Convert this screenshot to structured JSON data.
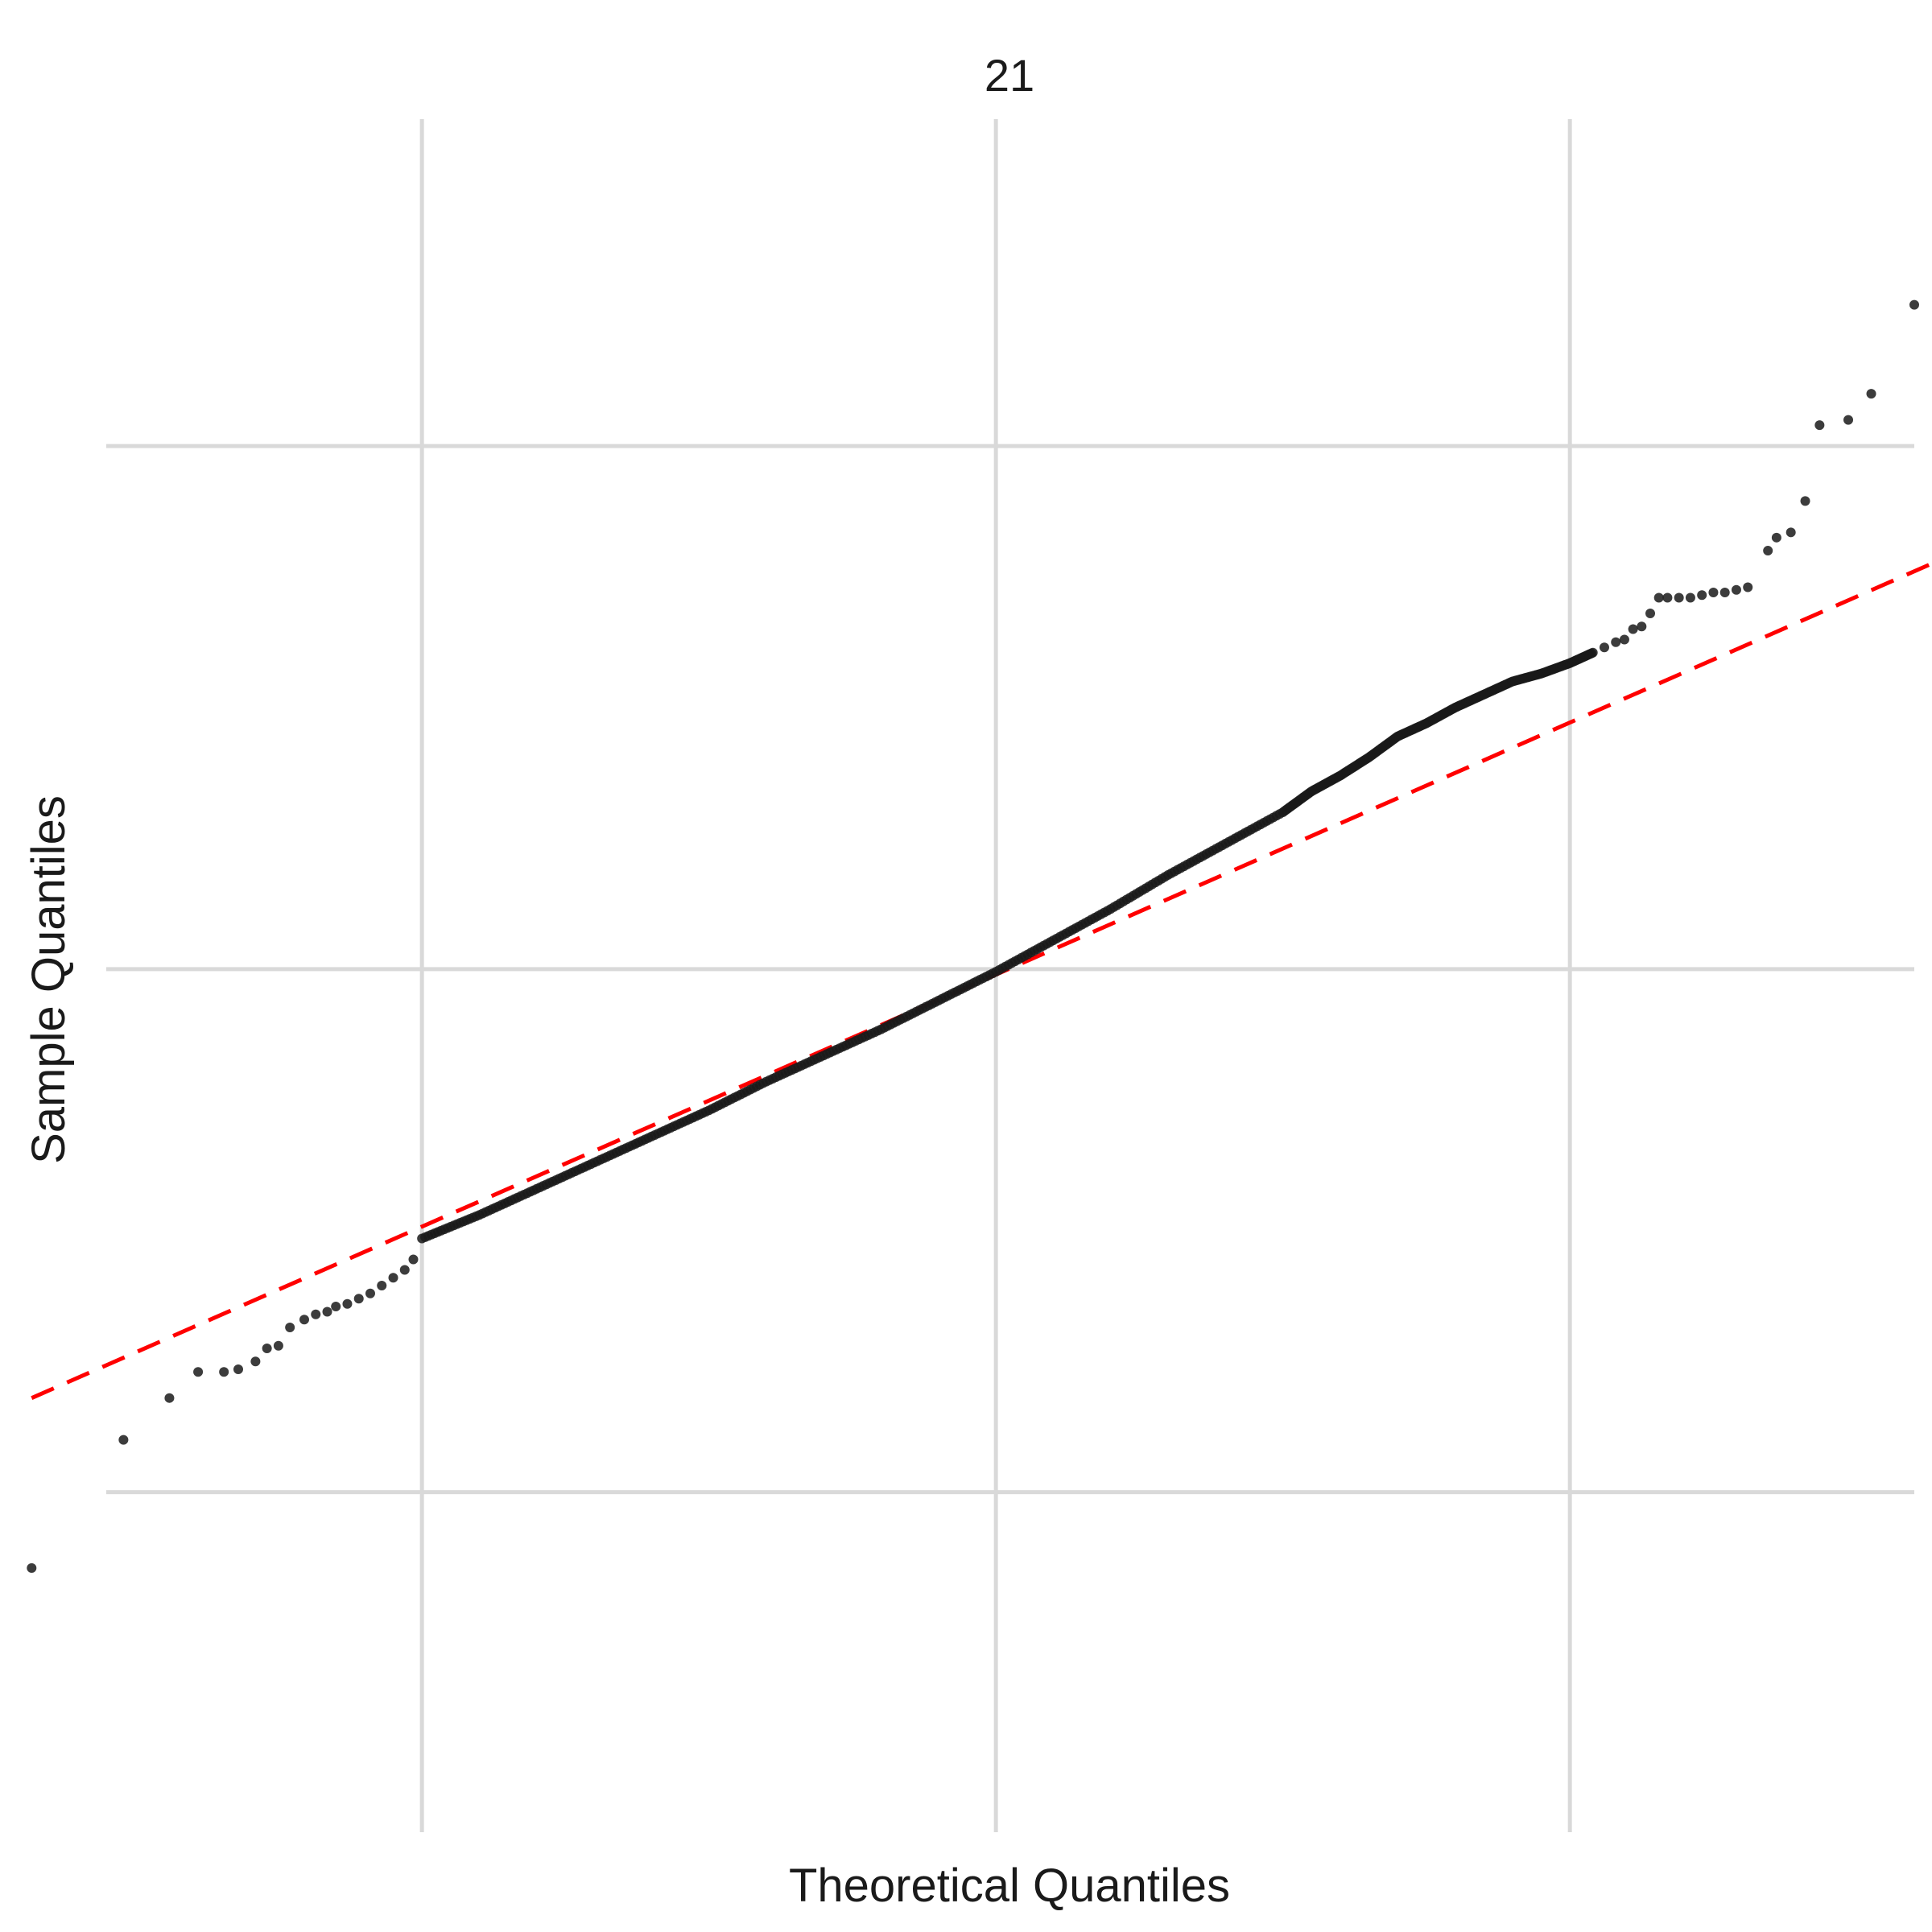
{
  "chart_data": {
    "type": "scatter",
    "title": "21",
    "xlabel": "Theoretical Quantiles",
    "ylabel": "Sample Quantiles",
    "xlim": [
      -3.1,
      3.2
    ],
    "ylim": [
      -3.3,
      3.25
    ],
    "x_gridlines": [
      -2,
      0,
      2
    ],
    "y_gridlines": [
      -2,
      0,
      2
    ],
    "tick_labels_shown": false,
    "grid": true,
    "legend": "none",
    "point_color": "#1a1a1a",
    "reference_line": {
      "color": "#ff0000",
      "style": "dashed",
      "x": [
        -3.36,
        3.26
      ],
      "y": [
        -1.64,
        1.55
      ]
    },
    "tail_points": {
      "x": [
        -3.36,
        -3.04,
        -2.88,
        -2.78,
        -2.69,
        -2.64,
        -2.58,
        -2.54,
        -2.5,
        -2.46,
        -2.41,
        -2.37,
        -2.33,
        -2.3,
        -2.26,
        -2.22,
        -2.18,
        -2.14,
        -2.1,
        -2.06,
        -2.03,
        2.12,
        2.16,
        2.19,
        2.22,
        2.25,
        2.28,
        2.31,
        2.34,
        2.38,
        2.42,
        2.46,
        2.5,
        2.54,
        2.58,
        2.62,
        2.69,
        2.72,
        2.77,
        2.82,
        2.87,
        2.97,
        3.05,
        3.2,
        3.34
      ],
      "y": [
        -2.29,
        -1.8,
        -1.64,
        -1.54,
        -1.54,
        -1.53,
        -1.5,
        -1.45,
        -1.44,
        -1.37,
        -1.34,
        -1.32,
        -1.31,
        -1.29,
        -1.28,
        -1.26,
        -1.24,
        -1.21,
        -1.18,
        -1.15,
        -1.11,
        1.23,
        1.25,
        1.26,
        1.3,
        1.31,
        1.36,
        1.42,
        1.42,
        1.42,
        1.42,
        1.43,
        1.44,
        1.44,
        1.45,
        1.46,
        1.6,
        1.65,
        1.67,
        1.79,
        2.08,
        2.1,
        2.2,
        2.54,
        3.19
      ]
    },
    "body_curve": {
      "x": [
        -2.0,
        -1.8,
        -1.6,
        -1.4,
        -1.2,
        -1.0,
        -0.8,
        -0.6,
        -0.4,
        -0.2,
        0.0,
        0.2,
        0.4,
        0.6,
        0.8,
        1.0,
        1.1,
        1.2,
        1.3,
        1.4,
        1.5,
        1.6,
        1.7,
        1.8,
        1.9,
        2.0,
        2.08
      ],
      "y": [
        -1.03,
        -0.94,
        -0.84,
        -0.74,
        -0.64,
        -0.54,
        -0.43,
        -0.33,
        -0.23,
        -0.12,
        -0.01,
        0.11,
        0.23,
        0.36,
        0.48,
        0.6,
        0.68,
        0.74,
        0.81,
        0.89,
        0.94,
        1.0,
        1.05,
        1.1,
        1.13,
        1.17,
        1.21
      ]
    }
  }
}
